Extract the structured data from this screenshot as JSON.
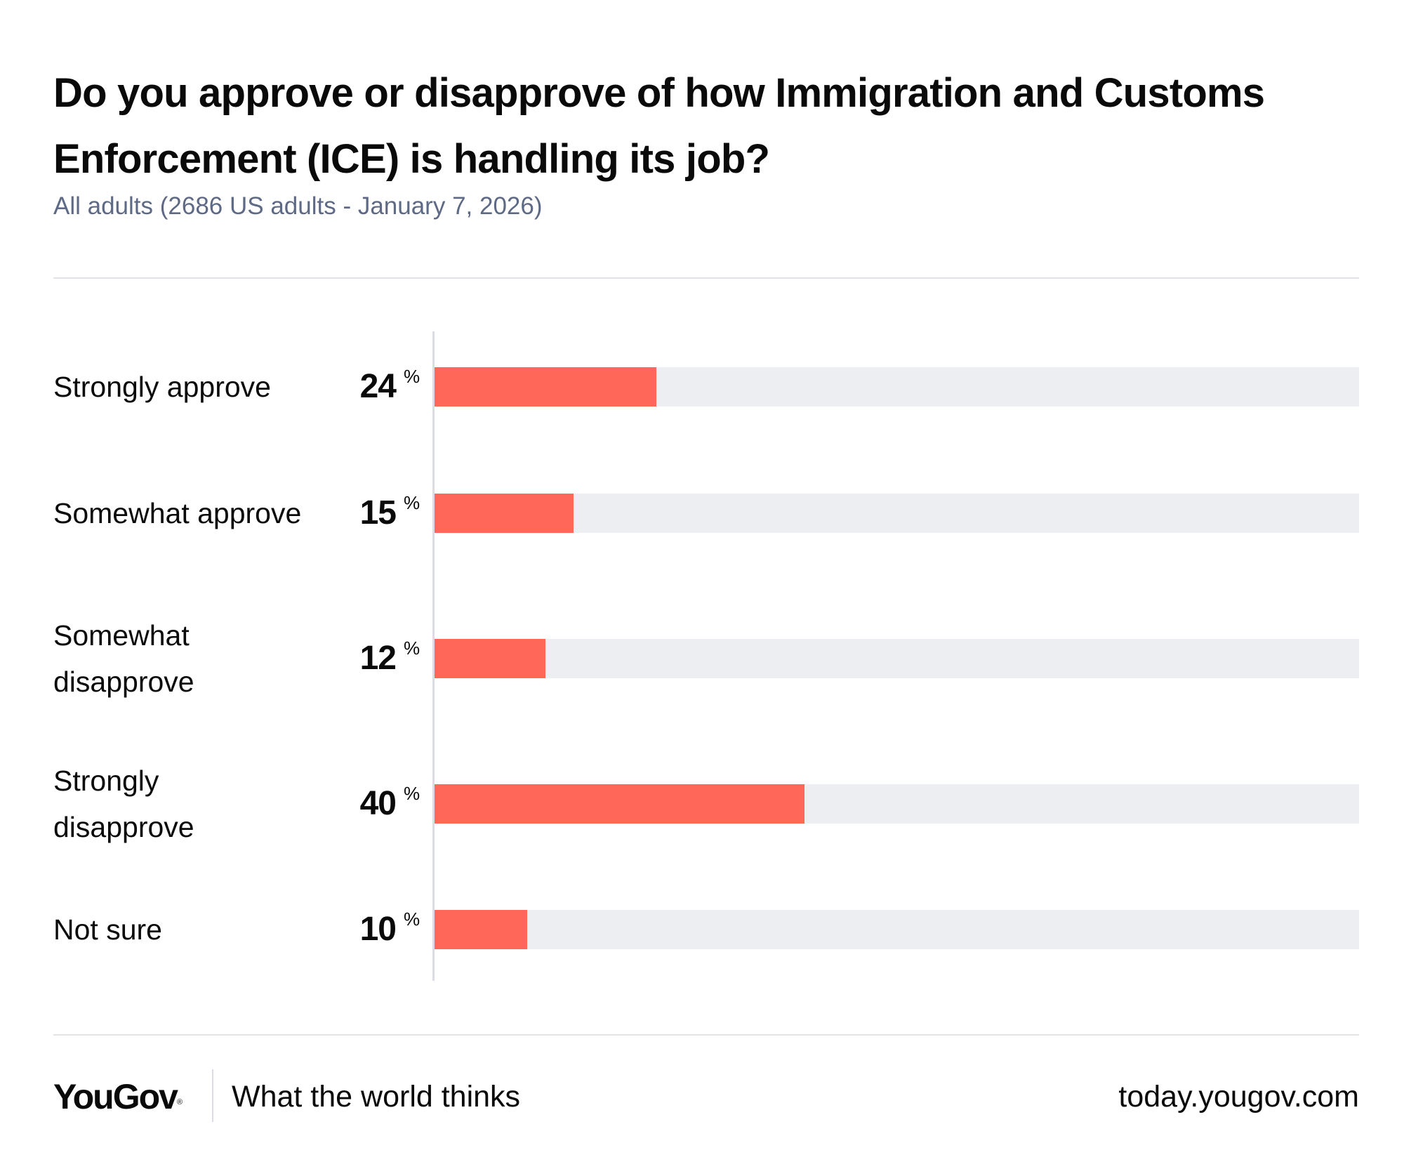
{
  "chart_data": {
    "type": "bar",
    "orientation": "horizontal",
    "title": "Do you approve or disapprove of how Immigration and Customs Enforcement (ICE) is handling its job?",
    "subtitle": "All adults (2686 US adults - January 7, 2026)",
    "categories": [
      "Strongly approve",
      "Somewhat approve",
      "Somewhat disapprove",
      "Strongly disapprove",
      "Not sure"
    ],
    "values": [
      24,
      15,
      12,
      40,
      10
    ],
    "unit": "%",
    "xlim": [
      0,
      100
    ],
    "grid": false,
    "legend": "none",
    "colors": {
      "bar": "#ff6859",
      "track": "#edeef2"
    }
  },
  "footer": {
    "logo": "YouGov",
    "logo_mark": "®",
    "tagline": "What the world thinks",
    "url": "today.yougov.com"
  }
}
